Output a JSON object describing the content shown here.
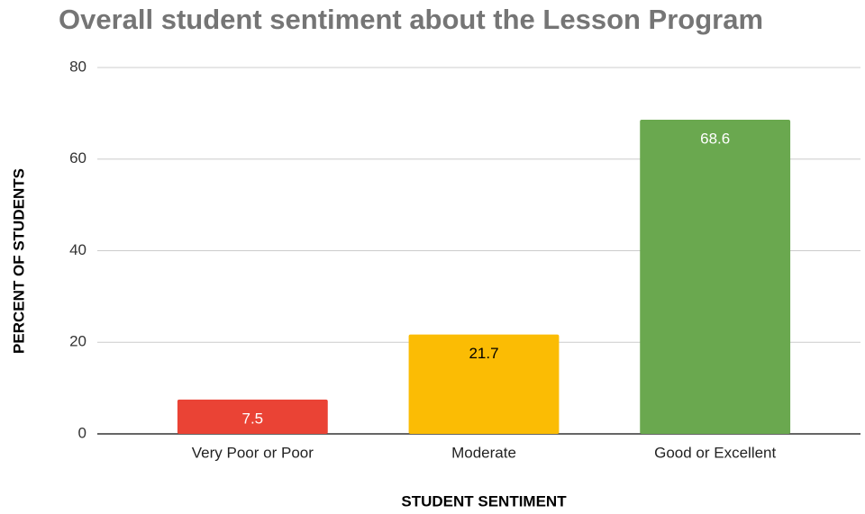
{
  "chart_data": {
    "type": "bar",
    "title": "Overall student sentiment about the Lesson Program",
    "x_label": "STUDENT SENTIMENT",
    "y_label": "PERCENT OF STUDENTS",
    "categories": [
      "Very Poor or Poor",
      "Moderate",
      "Good or Excellent"
    ],
    "values": [
      7.5,
      21.7,
      68.6
    ],
    "colors": [
      "#ea4335",
      "#fbbc04",
      "#6aa84f"
    ],
    "ylim": [
      0,
      80
    ],
    "yticks": [
      0,
      20,
      40,
      60,
      80
    ],
    "grid": true
  }
}
